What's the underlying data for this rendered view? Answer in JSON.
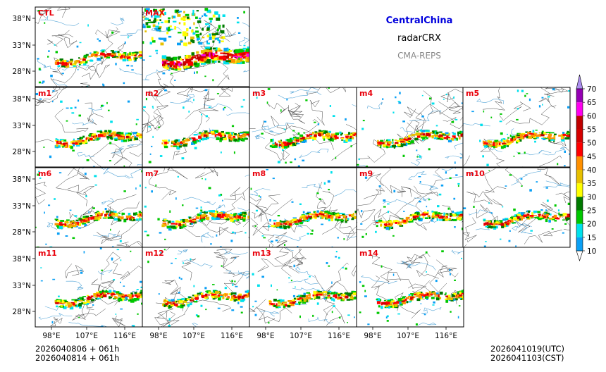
{
  "chart_data": {
    "type": "heatmap",
    "title": "CentralChina",
    "variable": "radarCRX",
    "system": "CMA-REPS",
    "panels": [
      "CTL",
      "MAX",
      "m1",
      "m2",
      "m3",
      "m4",
      "m5",
      "m6",
      "m7",
      "m8",
      "m9",
      "m10",
      "m11",
      "m12",
      "m13",
      "m14"
    ],
    "x_ticks": [
      "98°E",
      "107°E",
      "116°E"
    ],
    "y_ticks": [
      "38°N",
      "33°N",
      "28°N"
    ],
    "colorbar": {
      "levels": [
        "10",
        "15",
        "20",
        "25",
        "30",
        "35",
        "40",
        "45",
        "50",
        "55",
        "60",
        "65",
        "70"
      ],
      "colors": [
        "#0aa0f5",
        "#00e1ec",
        "#00c800",
        "#007a00",
        "#ffff00",
        "#e7c000",
        "#ff9000",
        "#ff0000",
        "#d60000",
        "#c00000",
        "#ff00f0",
        "#9600b4",
        "#ad90f0"
      ]
    },
    "footer_left": [
      "2026040806  +  061h",
      "2026040814  +  061h"
    ],
    "footer_right": [
      "2026041019(UTC)",
      "2026041103(CST)"
    ]
  }
}
